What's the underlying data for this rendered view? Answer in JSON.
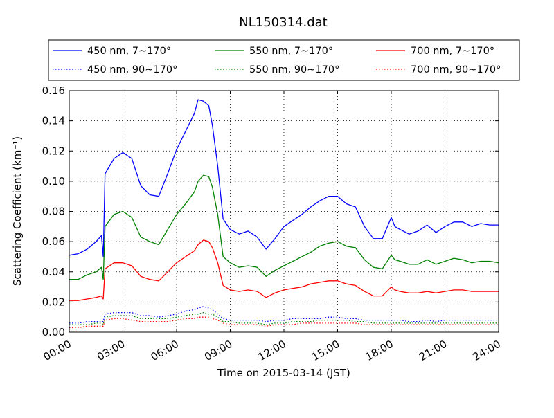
{
  "chart_data": {
    "type": "line",
    "title": "NL150314.dat",
    "xlabel": "Time on 2015-03-14 (JST)",
    "ylabel": "Scattering Coefficient (km⁻¹)",
    "xlim": [
      0,
      24
    ],
    "ylim": [
      0,
      0.16
    ],
    "x_ticks": [
      "00:00",
      "03:00",
      "06:00",
      "09:00",
      "12:00",
      "15:00",
      "18:00",
      "21:00",
      "24:00"
    ],
    "y_ticks": [
      "0.00",
      "0.02",
      "0.04",
      "0.06",
      "0.08",
      "0.10",
      "0.12",
      "0.14",
      "0.16"
    ],
    "grid": true,
    "legend_position": "top, above plot, 3 columns",
    "x": [
      0,
      0.5,
      1,
      1.5,
      1.8,
      1.9,
      2,
      2.5,
      3,
      3.5,
      4,
      4.5,
      5,
      5.5,
      6,
      6.5,
      7,
      7.2,
      7.5,
      7.8,
      8,
      8.3,
      8.6,
      9,
      9.5,
      10,
      10.5,
      11,
      11.5,
      12,
      12.5,
      13,
      13.5,
      14,
      14.5,
      15,
      15.5,
      16,
      16.5,
      17,
      17.5,
      18,
      18.2,
      18.5,
      19,
      19.5,
      20,
      20.5,
      21,
      21.5,
      22,
      22.5,
      23,
      23.5,
      24
    ],
    "series": [
      {
        "name": "450 nm, 7∼170°",
        "color": "#0000ff",
        "style": "solid",
        "values": [
          0.051,
          0.052,
          0.055,
          0.06,
          0.064,
          0.05,
          0.105,
          0.115,
          0.119,
          0.115,
          0.097,
          0.091,
          0.09,
          0.105,
          0.121,
          0.133,
          0.145,
          0.154,
          0.153,
          0.15,
          0.137,
          0.11,
          0.075,
          0.068,
          0.065,
          0.067,
          0.063,
          0.055,
          0.062,
          0.07,
          0.074,
          0.078,
          0.083,
          0.087,
          0.09,
          0.09,
          0.085,
          0.083,
          0.07,
          0.062,
          0.062,
          0.076,
          0.07,
          0.068,
          0.065,
          0.067,
          0.071,
          0.066,
          0.07,
          0.073,
          0.073,
          0.07,
          0.072,
          0.071,
          0.071
        ]
      },
      {
        "name": "450 nm, 90∼170°",
        "color": "#0000ff",
        "style": "dotted",
        "values": [
          0.006,
          0.006,
          0.007,
          0.007,
          0.007,
          0.007,
          0.012,
          0.013,
          0.013,
          0.013,
          0.011,
          0.011,
          0.01,
          0.011,
          0.012,
          0.014,
          0.015,
          0.016,
          0.017,
          0.016,
          0.015,
          0.012,
          0.009,
          0.008,
          0.008,
          0.008,
          0.008,
          0.007,
          0.008,
          0.008,
          0.009,
          0.009,
          0.009,
          0.009,
          0.01,
          0.01,
          0.009,
          0.009,
          0.008,
          0.008,
          0.008,
          0.008,
          0.008,
          0.008,
          0.007,
          0.007,
          0.008,
          0.007,
          0.008,
          0.008,
          0.008,
          0.008,
          0.008,
          0.008,
          0.008
        ]
      },
      {
        "name": "550 nm, 7∼170°",
        "color": "#008000",
        "style": "solid",
        "values": [
          0.035,
          0.035,
          0.038,
          0.04,
          0.043,
          0.035,
          0.07,
          0.078,
          0.08,
          0.076,
          0.063,
          0.06,
          0.058,
          0.068,
          0.078,
          0.085,
          0.093,
          0.1,
          0.104,
          0.103,
          0.096,
          0.078,
          0.05,
          0.046,
          0.043,
          0.044,
          0.043,
          0.037,
          0.041,
          0.044,
          0.047,
          0.05,
          0.053,
          0.057,
          0.059,
          0.06,
          0.057,
          0.056,
          0.048,
          0.043,
          0.042,
          0.051,
          0.048,
          0.047,
          0.045,
          0.045,
          0.048,
          0.045,
          0.047,
          0.049,
          0.048,
          0.046,
          0.047,
          0.047,
          0.046
        ]
      },
      {
        "name": "550 nm, 90∼170°",
        "color": "#008000",
        "style": "dotted",
        "values": [
          0.005,
          0.005,
          0.005,
          0.006,
          0.006,
          0.005,
          0.01,
          0.011,
          0.011,
          0.011,
          0.009,
          0.009,
          0.009,
          0.009,
          0.01,
          0.011,
          0.012,
          0.012,
          0.013,
          0.012,
          0.012,
          0.01,
          0.007,
          0.007,
          0.006,
          0.006,
          0.006,
          0.005,
          0.006,
          0.006,
          0.007,
          0.007,
          0.007,
          0.008,
          0.008,
          0.008,
          0.008,
          0.007,
          0.007,
          0.006,
          0.006,
          0.006,
          0.006,
          0.006,
          0.006,
          0.006,
          0.006,
          0.006,
          0.006,
          0.006,
          0.006,
          0.006,
          0.006,
          0.006,
          0.006
        ]
      },
      {
        "name": "700 nm, 7∼170°",
        "color": "#ff0000",
        "style": "solid",
        "values": [
          0.021,
          0.021,
          0.022,
          0.023,
          0.024,
          0.022,
          0.042,
          0.046,
          0.046,
          0.044,
          0.037,
          0.035,
          0.034,
          0.04,
          0.046,
          0.05,
          0.054,
          0.058,
          0.061,
          0.06,
          0.056,
          0.046,
          0.031,
          0.028,
          0.027,
          0.028,
          0.027,
          0.023,
          0.026,
          0.028,
          0.029,
          0.03,
          0.032,
          0.033,
          0.034,
          0.034,
          0.032,
          0.031,
          0.027,
          0.024,
          0.024,
          0.03,
          0.028,
          0.027,
          0.026,
          0.026,
          0.027,
          0.026,
          0.027,
          0.028,
          0.028,
          0.027,
          0.027,
          0.027,
          0.027
        ]
      },
      {
        "name": "700 nm, 90∼170°",
        "color": "#ff0000",
        "style": "dotted",
        "values": [
          0.003,
          0.003,
          0.004,
          0.004,
          0.004,
          0.004,
          0.008,
          0.009,
          0.009,
          0.008,
          0.007,
          0.007,
          0.007,
          0.007,
          0.008,
          0.009,
          0.009,
          0.01,
          0.01,
          0.01,
          0.009,
          0.008,
          0.006,
          0.005,
          0.005,
          0.005,
          0.005,
          0.004,
          0.005,
          0.005,
          0.005,
          0.006,
          0.006,
          0.006,
          0.006,
          0.006,
          0.006,
          0.006,
          0.005,
          0.005,
          0.005,
          0.005,
          0.005,
          0.005,
          0.005,
          0.005,
          0.005,
          0.005,
          0.005,
          0.005,
          0.005,
          0.005,
          0.005,
          0.005,
          0.005
        ]
      }
    ]
  }
}
